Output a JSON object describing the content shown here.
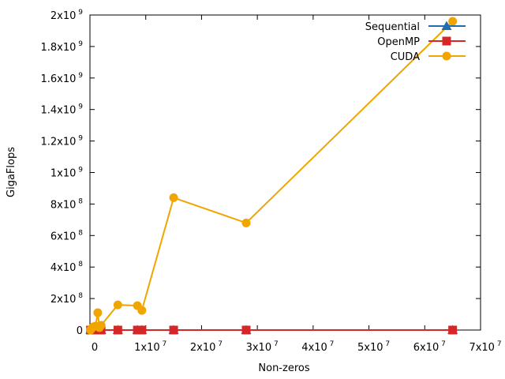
{
  "chart_data": {
    "type": "line",
    "xlabel": "Non-zeros",
    "ylabel": "GigaFlops",
    "xlim": [
      0,
      70000000
    ],
    "ylim": [
      0,
      2000000000
    ],
    "grid": false,
    "legend_position": "top-right",
    "x_ticks": [
      {
        "value": 0,
        "base": "0",
        "exp": ""
      },
      {
        "value": 10000000,
        "base": "1x10",
        "exp": "7"
      },
      {
        "value": 20000000,
        "base": "2x10",
        "exp": "7"
      },
      {
        "value": 30000000,
        "base": "3x10",
        "exp": "7"
      },
      {
        "value": 40000000,
        "base": "4x10",
        "exp": "7"
      },
      {
        "value": 50000000,
        "base": "5x10",
        "exp": "7"
      },
      {
        "value": 60000000,
        "base": "6x10",
        "exp": "7"
      },
      {
        "value": 70000000,
        "base": "7x10",
        "exp": "7"
      }
    ],
    "y_ticks": [
      {
        "value": 0,
        "base": "0",
        "exp": ""
      },
      {
        "value": 200000000,
        "base": "2x10",
        "exp": "8"
      },
      {
        "value": 400000000,
        "base": "4x10",
        "exp": "8"
      },
      {
        "value": 600000000,
        "base": "6x10",
        "exp": "8"
      },
      {
        "value": 800000000,
        "base": "8x10",
        "exp": "8"
      },
      {
        "value": 1000000000,
        "base": "1x10",
        "exp": "9"
      },
      {
        "value": 1200000000,
        "base": "1.2x10",
        "exp": "9"
      },
      {
        "value": 1400000000,
        "base": "1.4x10",
        "exp": "9"
      },
      {
        "value": 1600000000,
        "base": "1.6x10",
        "exp": "9"
      },
      {
        "value": 1800000000,
        "base": "1.8x10",
        "exp": "9"
      },
      {
        "value": 2000000000,
        "base": "2x10",
        "exp": "9"
      }
    ],
    "series": [
      {
        "name": "Sequential",
        "color": "#1f6fb0",
        "marker": "triangle",
        "x": [
          100000,
          300000,
          600000,
          1000000,
          1500000,
          2000000,
          5000000,
          8500000,
          9300000,
          15000000,
          28000000,
          65000000
        ],
        "y": [
          0,
          0,
          0,
          0,
          0,
          0,
          0,
          0,
          0,
          0,
          0,
          0
        ]
      },
      {
        "name": "OpenMP",
        "color": "#d62728",
        "marker": "square",
        "x": [
          100000,
          300000,
          600000,
          1000000,
          1500000,
          2000000,
          5000000,
          8500000,
          9300000,
          15000000,
          28000000,
          65000000
        ],
        "y": [
          0,
          0,
          0,
          0,
          0,
          0,
          0,
          0,
          0,
          0,
          0,
          0
        ]
      },
      {
        "name": "CUDA",
        "color": "#f0a500",
        "marker": "circle",
        "x": [
          100000,
          300000,
          600000,
          1000000,
          1400000,
          1700000,
          2000000,
          5000000,
          8500000,
          9300000,
          15000000,
          28000000,
          65000000
        ],
        "y": [
          0,
          10000000,
          20000000,
          25000000,
          110000000,
          15000000,
          30000000,
          160000000,
          155000000,
          125000000,
          840000000,
          680000000,
          1960000000
        ]
      }
    ]
  }
}
